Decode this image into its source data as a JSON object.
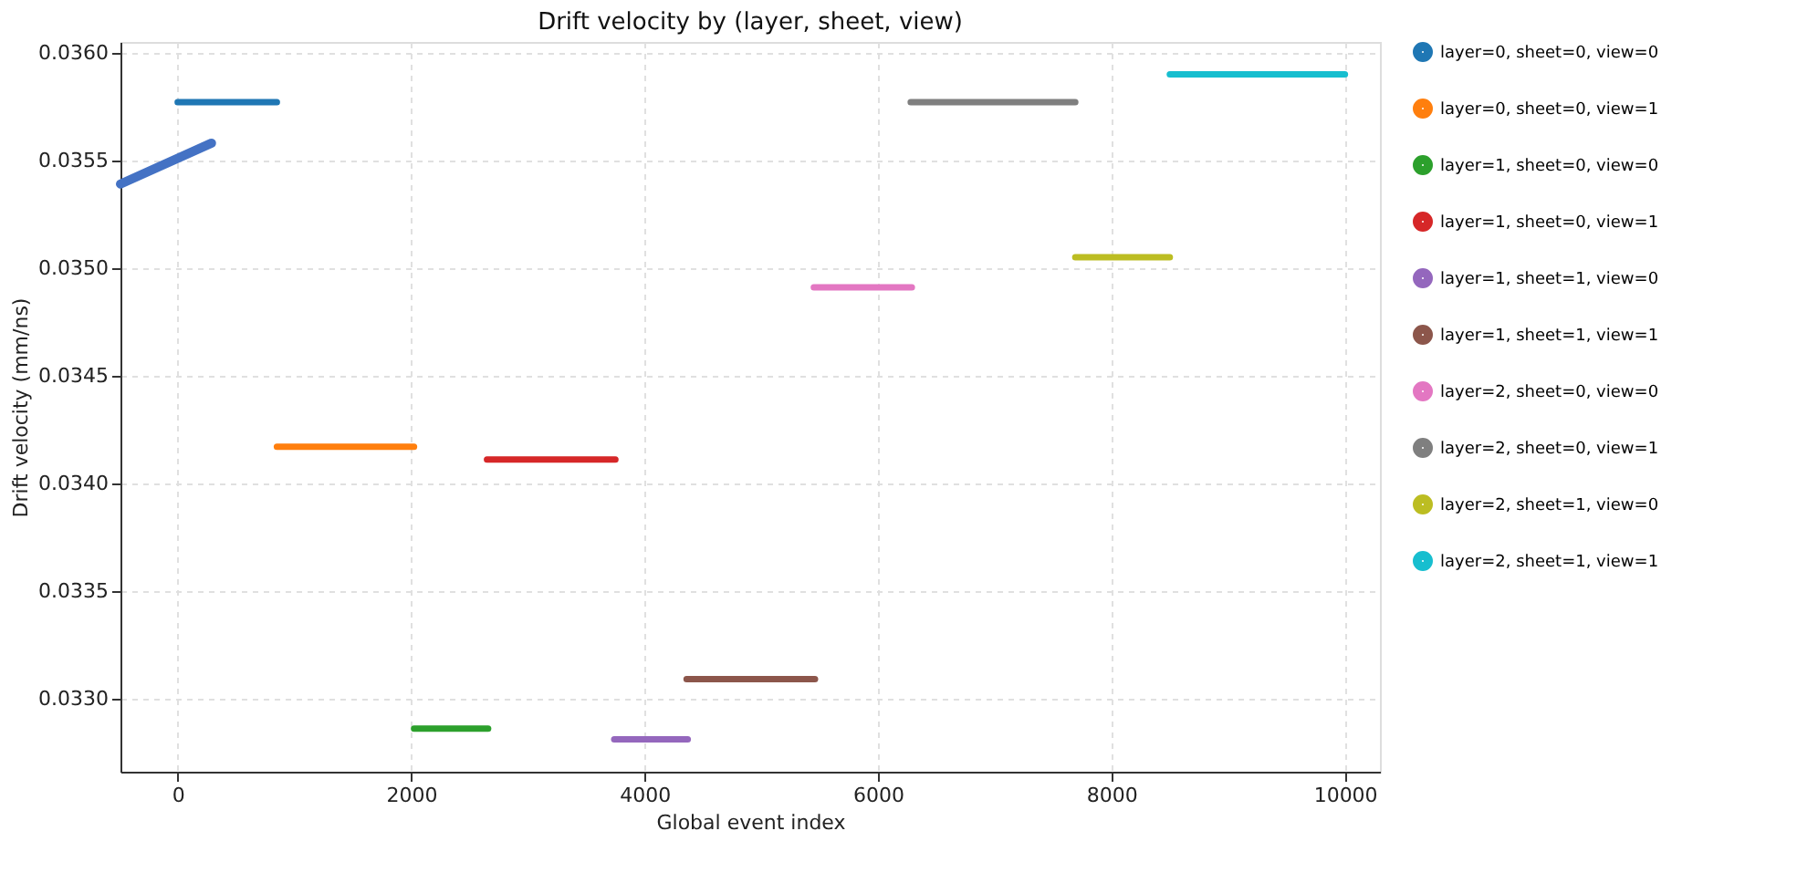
{
  "chart_data": {
    "type": "line",
    "title": "Drift velocity by (layer, sheet, view)",
    "xlabel": "Global event index",
    "ylabel": "Drift velocity (mm/ns)",
    "xlim": [
      -490,
      10300
    ],
    "xticks": [
      0,
      2000,
      4000,
      6000,
      8000,
      10000
    ],
    "ylim": [
      0.03266,
      0.03605
    ],
    "yticks": [
      {
        "value": 0.033,
        "label": "0.0330"
      },
      0.0335,
      {
        "value": 0.034,
        "label": "0.0340"
      },
      0.0345,
      {
        "value": 0.035,
        "label": "0.0350"
      },
      0.0355,
      {
        "value": 0.036,
        "label": "0.0360"
      }
    ],
    "grid": true,
    "legend": "right",
    "marker": "none",
    "line_style": "solid",
    "series": [
      {
        "name": "layer=0, sheet=0, view=0",
        "color": "#1f77b4",
        "x": [
          0,
          850
        ],
        "values": [
          0.03577,
          0.03577
        ]
      },
      {
        "name": "layer=0, sheet=0, view=1",
        "color": "#ff7f0e",
        "x": [
          850,
          2025
        ],
        "values": [
          0.03417,
          0.03417
        ]
      },
      {
        "name": "layer=1, sheet=0, view=0",
        "color": "#2ca02c",
        "x": [
          2025,
          2660
        ],
        "values": [
          0.03286,
          0.03286
        ]
      },
      {
        "name": "layer=1, sheet=0, view=1",
        "color": "#d62728",
        "x": [
          2650,
          3750
        ],
        "values": [
          0.03411,
          0.03411
        ]
      },
      {
        "name": "layer=1, sheet=1, view=0",
        "color": "#9467bd",
        "x": [
          3740,
          4370
        ],
        "values": [
          0.03281,
          0.03281
        ]
      },
      {
        "name": "layer=1, sheet=1, view=1",
        "color": "#8c564b",
        "x": [
          4360,
          5460
        ],
        "values": [
          0.03309,
          0.03309
        ]
      },
      {
        "name": "layer=2, sheet=0, view=0",
        "color": "#e377c2",
        "x": [
          5450,
          6290
        ],
        "values": [
          0.03491,
          0.03491
        ]
      },
      {
        "name": "layer=2, sheet=0, view=1",
        "color": "#7f7f7f",
        "x": [
          6280,
          7690
        ],
        "values": [
          0.03577,
          0.03577
        ]
      },
      {
        "name": "layer=2, sheet=1, view=0",
        "color": "#bcbd22",
        "x": [
          7690,
          8500
        ],
        "values": [
          0.03505,
          0.03505
        ]
      },
      {
        "name": "layer=2, sheet=1, view=1",
        "color": "#17becf",
        "x": [
          8500,
          10000
        ],
        "values": [
          0.0359,
          0.0359
        ]
      },
      {
        "color": "#4472c4",
        "x": [
          -490,
          290
        ],
        "values": [
          0.03539,
          0.03558
        ]
      }
    ]
  }
}
